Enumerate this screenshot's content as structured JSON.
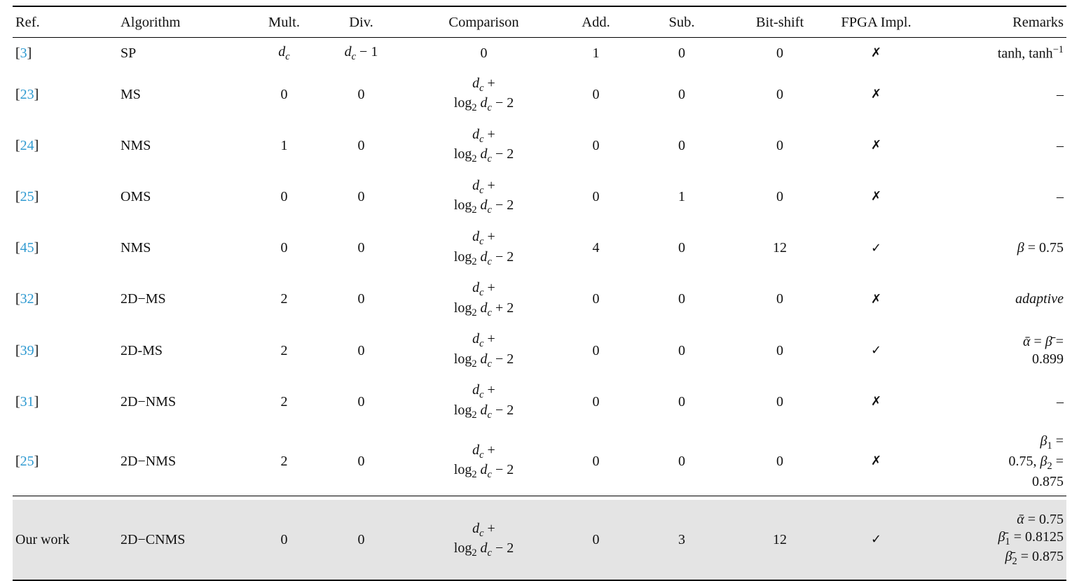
{
  "colors": {
    "citation": "#2f9ad1",
    "shaded_row_bg": "#e4e4e4",
    "rule": "#000000"
  },
  "table": {
    "columns": [
      "Ref.",
      "Algorithm",
      "Mult.",
      "Div.",
      "Comparison",
      "Add.",
      "Sub.",
      "Bit-shift",
      "FPGA Impl.",
      "Remarks"
    ],
    "rows": [
      {
        "ref": {
          "citation": "3"
        },
        "algorithm": "SP",
        "mult": "<i>d<sub>c</sub></i>",
        "div": "<i>d<sub>c</sub></i> − 1",
        "comparison": "0",
        "add": "1",
        "sub": "0",
        "bitshift": "0",
        "fpga": "✗",
        "remarks": "tanh, tanh<sup>−1</sup>"
      },
      {
        "ref": {
          "citation": "23"
        },
        "algorithm": "MS",
        "mult": "0",
        "div": "0",
        "comparison": "<i>d<sub>c</sub></i> +<br>log<sub>2</sub> <i>d<sub>c</sub></i> − 2",
        "add": "0",
        "sub": "0",
        "bitshift": "0",
        "fpga": "✗",
        "remarks": "–"
      },
      {
        "ref": {
          "citation": "24"
        },
        "algorithm": "NMS",
        "mult": "1",
        "div": "0",
        "comparison": "<i>d<sub>c</sub></i> +<br>log<sub>2</sub> <i>d<sub>c</sub></i> − 2",
        "add": "0",
        "sub": "0",
        "bitshift": "0",
        "fpga": "✗",
        "remarks": "–"
      },
      {
        "ref": {
          "citation": "25"
        },
        "algorithm": "OMS",
        "mult": "0",
        "div": "0",
        "comparison": "<i>d<sub>c</sub></i> +<br>log<sub>2</sub> <i>d<sub>c</sub></i> − 2",
        "add": "0",
        "sub": "1",
        "bitshift": "0",
        "fpga": "✗",
        "remarks": "–"
      },
      {
        "ref": {
          "citation": "45"
        },
        "algorithm": "NMS",
        "mult": "0",
        "div": "0",
        "comparison": "<i>d<sub>c</sub></i> +<br>log<sub>2</sub> <i>d<sub>c</sub></i> − 2",
        "add": "4",
        "sub": "0",
        "bitshift": "12",
        "fpga": "✓",
        "remarks": "<i>β</i> = 0.75"
      },
      {
        "ref": {
          "citation": "32"
        },
        "algorithm": "2D−MS",
        "mult": "2",
        "div": "0",
        "comparison": "<i>d<sub>c</sub></i> +<br>log<sub>2</sub> <i>d<sub>c</sub></i> + 2",
        "add": "0",
        "sub": "0",
        "bitshift": "0",
        "fpga": "✗",
        "remarks": "<i>adaptive</i>"
      },
      {
        "ref": {
          "citation": "39"
        },
        "algorithm": "2D-MS",
        "mult": "2",
        "div": "0",
        "comparison": "<i>d<sub>c</sub></i> +<br>log<sub>2</sub> <i>d<sub>c</sub></i> − 2",
        "add": "0",
        "sub": "0",
        "bitshift": "0",
        "fpga": "✓",
        "remarks": "<i>ᾱ</i> = <i>β̄</i> =<br>0.899"
      },
      {
        "ref": {
          "citation": "31"
        },
        "algorithm": "2D−NMS",
        "mult": "2",
        "div": "0",
        "comparison": "<i>d<sub>c</sub></i> +<br>log<sub>2</sub> <i>d<sub>c</sub></i> − 2",
        "add": "0",
        "sub": "0",
        "bitshift": "0",
        "fpga": "✗",
        "remarks": "–"
      },
      {
        "ref": {
          "citation": "25"
        },
        "algorithm": "2D−NMS",
        "mult": "2",
        "div": "0",
        "comparison": "<i>d<sub>c</sub></i> +<br>log<sub>2</sub> <i>d<sub>c</sub></i> − 2",
        "add": "0",
        "sub": "0",
        "bitshift": "0",
        "fpga": "✗",
        "remarks": "<i>β</i><sub>1</sub> =<br>0.75, <i>β</i><sub>2</sub> =<br>0.875"
      },
      {
        "ref": {
          "label": "Our work"
        },
        "algorithm": "2D−CNMS",
        "mult": "0",
        "div": "0",
        "comparison": "<i>d<sub>c</sub></i> +<br>log<sub>2</sub> <i>d<sub>c</sub></i> − 2",
        "add": "0",
        "sub": "3",
        "bitshift": "12",
        "fpga": "✓",
        "remarks": "<i>ᾱ</i> = 0.75<br><i>β̄</i><sub>1</sub> = 0.8125<br><i>β̄</i><sub>2</sub> = 0.875",
        "shaded": true
      }
    ]
  }
}
